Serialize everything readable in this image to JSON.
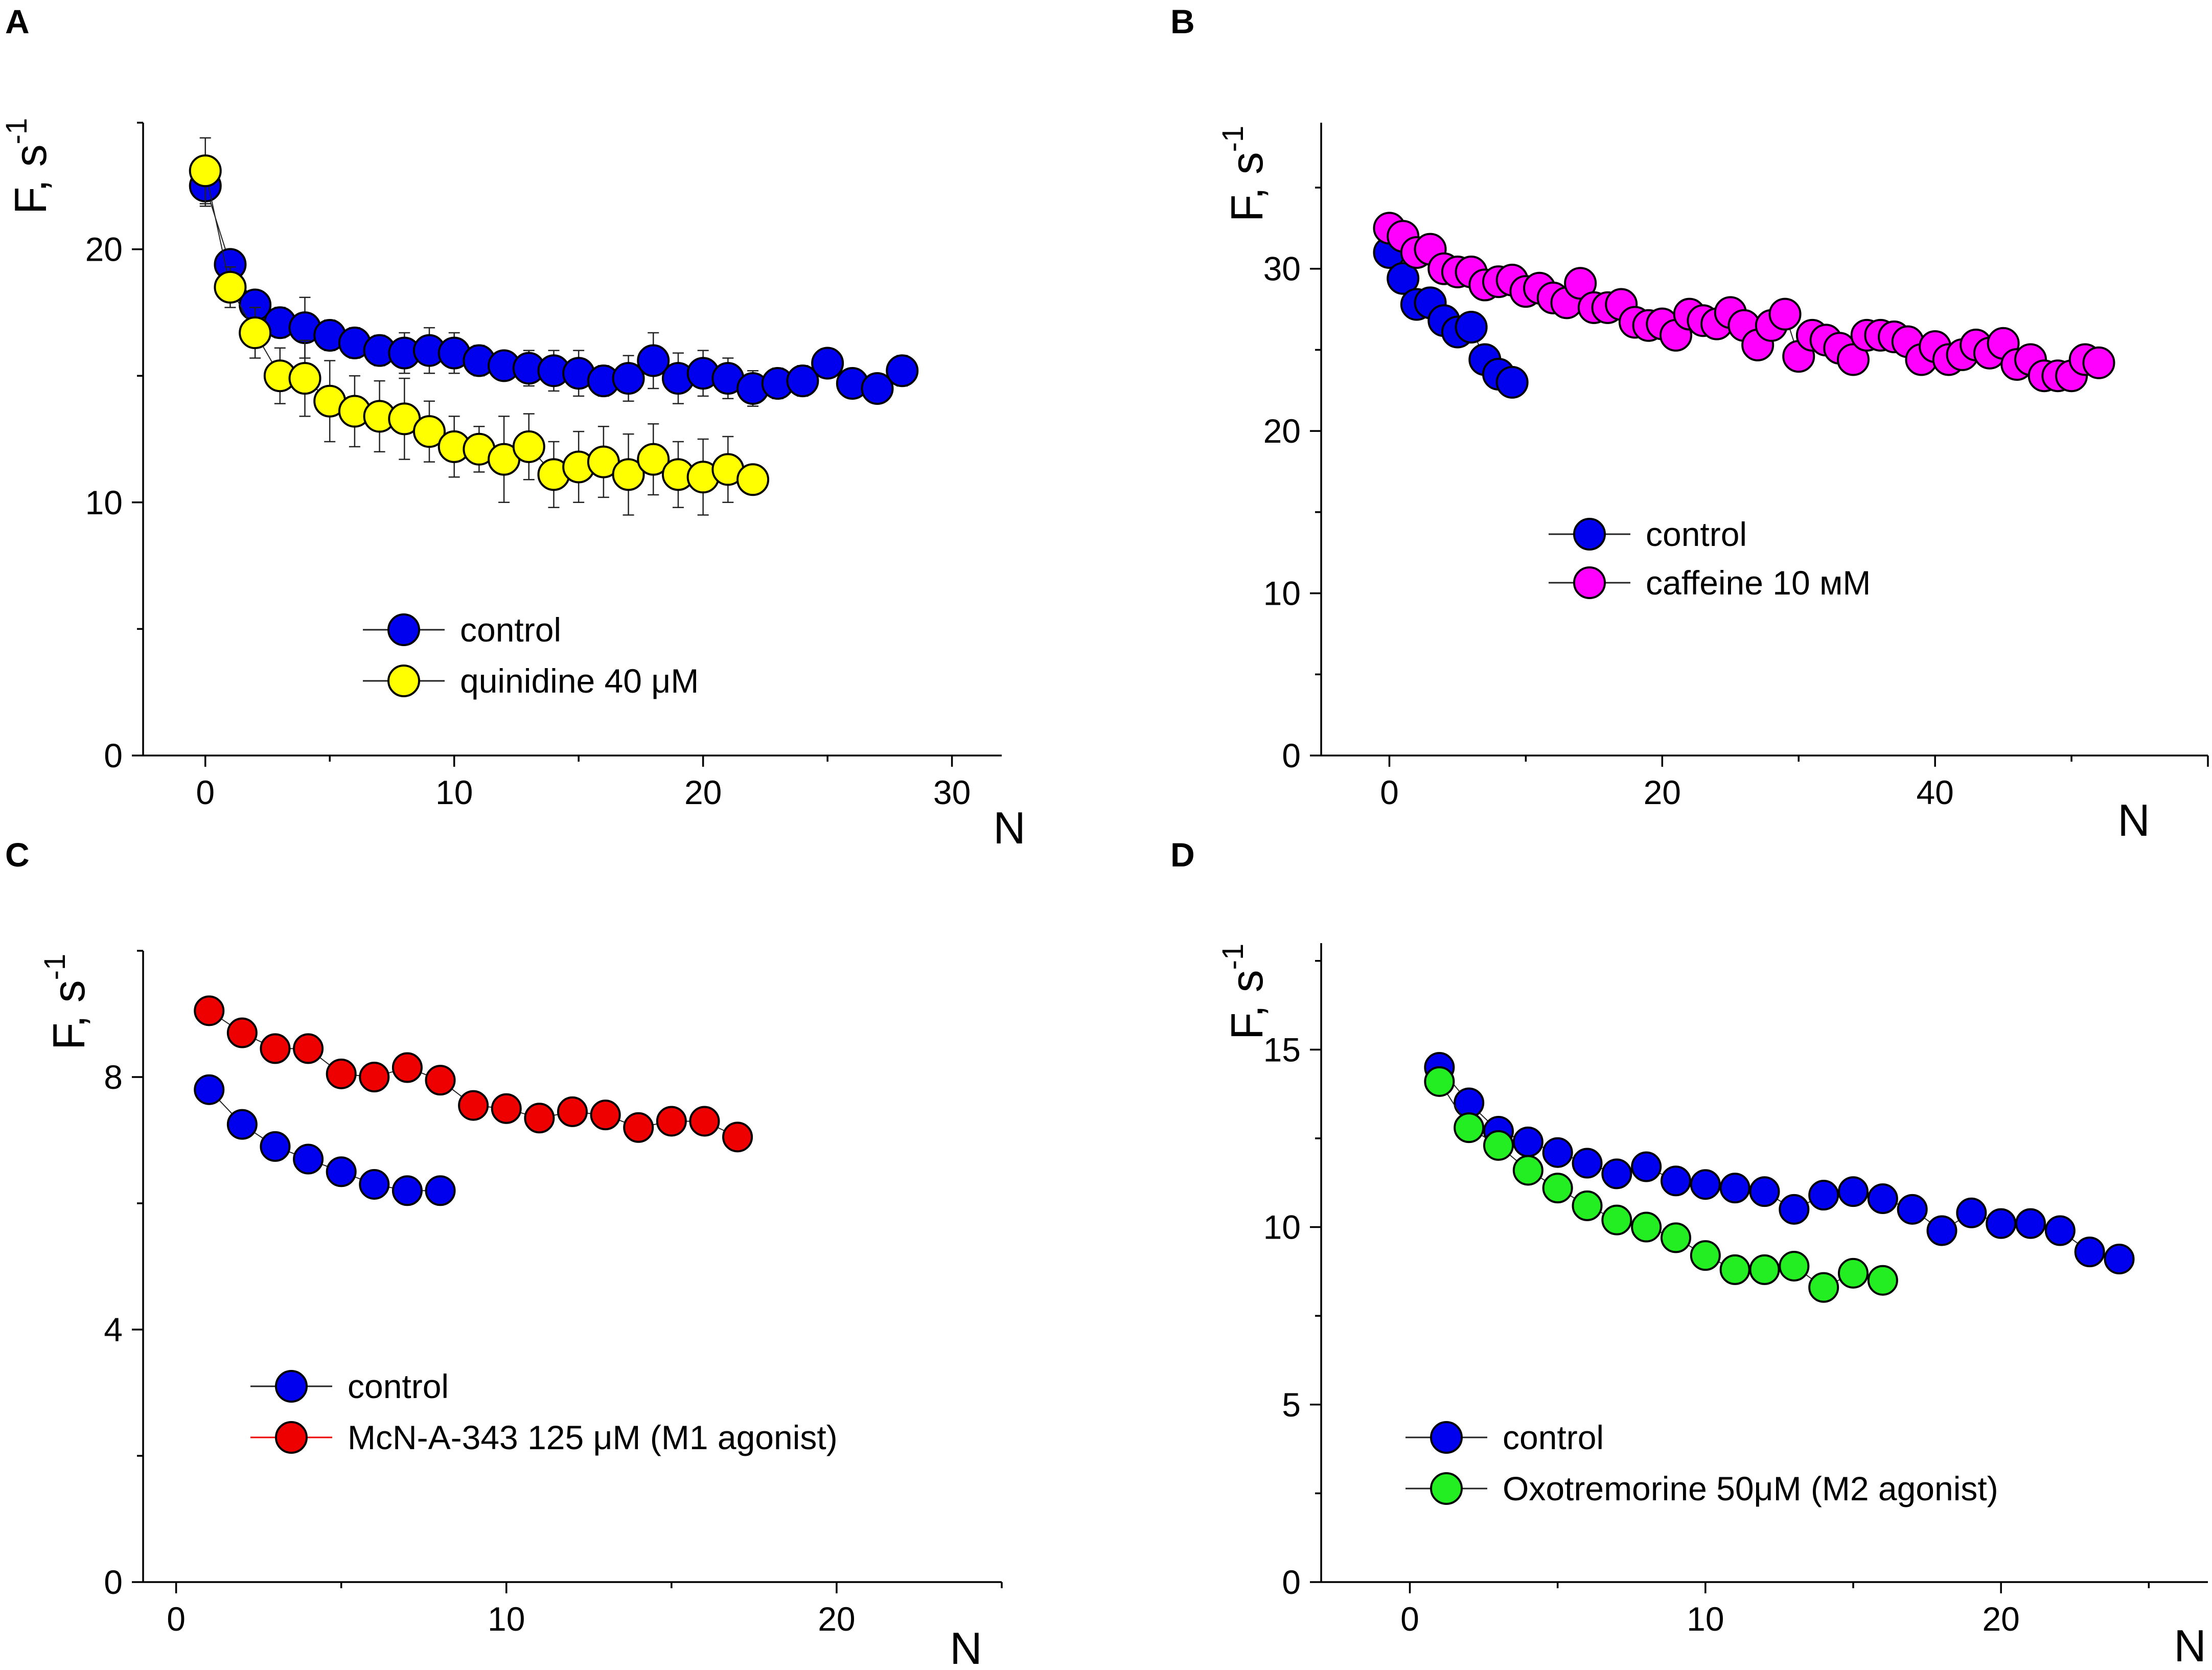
{
  "chart_data": [
    {
      "type": "scatter",
      "panel": "A",
      "title": "",
      "xlabel": "N",
      "ylabel": "F, s",
      "ylabel_sup": "-1",
      "xlim": [
        -2.5,
        32
      ],
      "ylim": [
        0,
        25
      ],
      "xticks": [
        0,
        10,
        20,
        30
      ],
      "yticks": [
        0,
        10,
        20
      ],
      "legend_position": "center-bottom",
      "series": [
        {
          "name": "control",
          "color": "#0000ee",
          "x": [
            0,
            1,
            2,
            3,
            4,
            5,
            6,
            7,
            8,
            9,
            10,
            11,
            12,
            13,
            14,
            15,
            16,
            17,
            18,
            19,
            20,
            21,
            22,
            23,
            24,
            25,
            26,
            27,
            28
          ],
          "y": [
            22.5,
            19.4,
            17.8,
            17.1,
            16.9,
            16.6,
            16.3,
            16.0,
            15.9,
            16.0,
            15.9,
            15.6,
            15.4,
            15.3,
            15.2,
            15.1,
            14.8,
            14.9,
            15.6,
            14.9,
            15.1,
            14.9,
            14.5,
            14.7,
            14.8,
            15.5,
            14.7,
            14.5,
            15.2
          ],
          "err": [
            0.8,
            0.5,
            0.5,
            0.6,
            1.2,
            0.6,
            0.6,
            0.6,
            0.8,
            0.9,
            0.8,
            0.6,
            0.5,
            0.7,
            0.8,
            0.9,
            0.6,
            0.9,
            1.1,
            1.0,
            0.9,
            0.8,
            0.7,
            0.6,
            0.6,
            0.4,
            0.3,
            0.3,
            0.6
          ]
        },
        {
          "name": "quinidine 40 μM",
          "color": "#ffff00",
          "x": [
            0,
            1,
            2,
            3,
            4,
            5,
            6,
            7,
            8,
            9,
            10,
            11,
            12,
            13,
            14,
            15,
            16,
            17,
            18,
            19,
            20,
            21,
            22
          ],
          "y": [
            23.1,
            18.5,
            16.7,
            15.0,
            14.9,
            14.0,
            13.6,
            13.4,
            13.3,
            12.8,
            12.2,
            12.1,
            11.7,
            12.2,
            11.1,
            11.4,
            11.6,
            11.1,
            11.7,
            11.1,
            11.0,
            11.3,
            10.9
          ],
          "err": [
            1.3,
            0.8,
            1.0,
            1.1,
            1.5,
            1.6,
            1.4,
            1.4,
            1.6,
            1.2,
            1.2,
            0.9,
            1.7,
            1.3,
            1.3,
            1.4,
            1.4,
            1.6,
            1.4,
            1.3,
            1.5,
            1.3,
            0.4
          ]
        }
      ]
    },
    {
      "type": "scatter",
      "panel": "B",
      "title": "",
      "xlabel": "N",
      "ylabel": "F, s",
      "ylabel_sup": "-1",
      "xlim": [
        -5,
        60
      ],
      "ylim": [
        0,
        39
      ],
      "xticks": [
        0,
        20,
        40
      ],
      "yticks": [
        0,
        10,
        20,
        30
      ],
      "legend_position": "center",
      "series": [
        {
          "name": "control",
          "color": "#0000ee",
          "x": [
            0,
            1,
            2,
            3,
            4,
            5,
            6,
            7,
            8,
            9
          ],
          "y": [
            31.0,
            29.4,
            27.8,
            27.9,
            26.8,
            26.1,
            26.4,
            24.4,
            23.5,
            23.0
          ]
        },
        {
          "name": "caffeine 10 мМ",
          "color": "#ff00ff",
          "x": [
            0,
            1,
            2,
            3,
            4,
            5,
            6,
            7,
            8,
            9,
            10,
            11,
            12,
            13,
            14,
            15,
            16,
            17,
            18,
            19,
            20,
            21,
            22,
            23,
            24,
            25,
            26,
            27,
            28,
            29,
            30,
            31,
            32,
            33,
            34,
            35,
            36,
            37,
            38,
            39,
            40,
            41,
            42,
            43,
            44,
            45,
            46,
            47,
            48,
            49,
            50,
            51,
            52
          ],
          "y": [
            32.5,
            32.0,
            31.0,
            31.2,
            30.0,
            29.8,
            29.8,
            29.0,
            29.2,
            29.3,
            28.6,
            28.8,
            28.2,
            27.9,
            29.1,
            27.6,
            27.6,
            27.8,
            26.7,
            26.5,
            26.6,
            25.9,
            27.2,
            26.8,
            26.6,
            27.3,
            26.5,
            25.3,
            26.5,
            27.2,
            24.6,
            25.9,
            25.6,
            25.1,
            24.4,
            25.9,
            25.9,
            25.8,
            25.5,
            24.4,
            25.2,
            24.4,
            24.7,
            25.3,
            24.8,
            25.4,
            24.1,
            24.4,
            23.4,
            23.4,
            23.4,
            24.4,
            24.2
          ]
        }
      ]
    },
    {
      "type": "scatter",
      "panel": "C",
      "title": "",
      "xlabel": "N",
      "ylabel": "F, s",
      "ylabel_sup": "-1",
      "xlim": [
        -1,
        25
      ],
      "ylim": [
        0,
        10
      ],
      "xticks": [
        0,
        10,
        20
      ],
      "yticks": [
        0,
        4,
        8
      ],
      "legend_position": "bottom-left",
      "series": [
        {
          "name": "control",
          "color": "#0000ee",
          "x": [
            1,
            2,
            3,
            4,
            5,
            6,
            7,
            8
          ],
          "y": [
            7.8,
            7.25,
            6.9,
            6.7,
            6.5,
            6.3,
            6.2,
            6.2
          ]
        },
        {
          "name": "McN-A-343 125 μM (M1 agonist)",
          "color": "#ee0000",
          "x": [
            1,
            2,
            3,
            4,
            5,
            6,
            7,
            8,
            9,
            10,
            11,
            12,
            13,
            14,
            15,
            16,
            17
          ],
          "y": [
            9.05,
            8.7,
            8.45,
            8.45,
            8.05,
            8.0,
            8.15,
            7.95,
            7.55,
            7.5,
            7.35,
            7.45,
            7.4,
            7.2,
            7.3,
            7.3,
            7.05
          ]
        }
      ]
    },
    {
      "type": "scatter",
      "panel": "D",
      "title": "",
      "xlabel": "N",
      "ylabel": "F, s",
      "ylabel_sup": "-1",
      "xlim": [
        -3,
        27
      ],
      "ylim": [
        0,
        18
      ],
      "xticks": [
        0,
        10,
        20
      ],
      "yticks": [
        0,
        5,
        10,
        15
      ],
      "legend_position": "bottom-left",
      "series": [
        {
          "name": "control",
          "color": "#0000ee",
          "x": [
            1,
            2,
            3,
            4,
            5,
            6,
            7,
            8,
            9,
            10,
            11,
            12,
            13,
            14,
            15,
            16,
            17,
            18,
            19,
            20,
            21,
            22,
            23,
            24
          ],
          "y": [
            14.5,
            13.5,
            12.7,
            12.4,
            12.1,
            11.8,
            11.5,
            11.7,
            11.3,
            11.2,
            11.1,
            11.0,
            10.5,
            10.9,
            11.0,
            10.8,
            10.5,
            9.9,
            10.4,
            10.1,
            10.1,
            9.9,
            9.3,
            9.1
          ]
        },
        {
          "name": "Oxotremorine 50μM (M2 agonist)",
          "color": "#22ee22",
          "x": [
            1,
            2,
            3,
            4,
            5,
            6,
            7,
            8,
            9,
            10,
            11,
            12,
            13,
            14,
            15,
            16
          ],
          "y": [
            14.1,
            12.8,
            12.3,
            11.6,
            11.1,
            10.6,
            10.2,
            10.0,
            9.7,
            9.2,
            8.8,
            8.8,
            8.9,
            8.3,
            8.7,
            8.5
          ]
        }
      ]
    }
  ]
}
